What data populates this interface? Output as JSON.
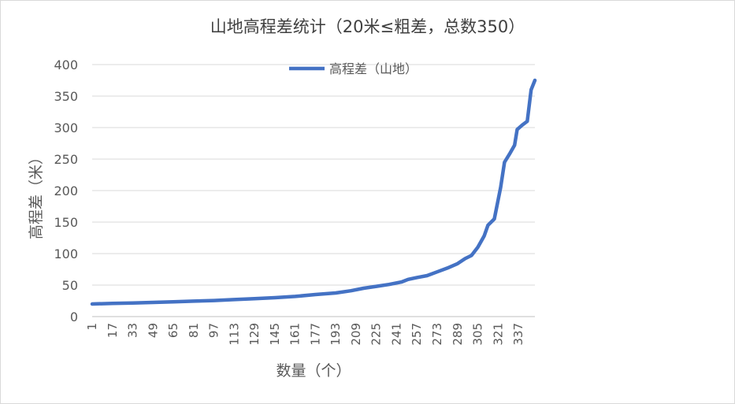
{
  "chart_data": {
    "type": "line",
    "title": "山地高程差统计（20米≤粗差，总数350）",
    "xlabel": "数量（个）",
    "ylabel": "高程差（米）",
    "ylim": [
      0,
      400
    ],
    "y_ticks": [
      "0",
      "50",
      "100",
      "150",
      "200",
      "250",
      "300",
      "350",
      "400"
    ],
    "x_range": [
      1,
      350
    ],
    "x_ticks": [
      "1",
      "17",
      "33",
      "49",
      "65",
      "81",
      "97",
      "113",
      "129",
      "145",
      "161",
      "177",
      "193",
      "209",
      "225",
      "241",
      "257",
      "273",
      "289",
      "305",
      "321",
      "337"
    ],
    "grid": "horizontal",
    "legend_position": "top-center",
    "series_color": "#4472C4",
    "series": [
      {
        "name": "高程差（山地）",
        "points": [
          [
            1,
            20
          ],
          [
            17,
            21
          ],
          [
            33,
            21.5
          ],
          [
            49,
            22.5
          ],
          [
            65,
            23.5
          ],
          [
            81,
            24.5
          ],
          [
            97,
            25.5
          ],
          [
            113,
            27
          ],
          [
            129,
            28.5
          ],
          [
            145,
            30
          ],
          [
            161,
            32
          ],
          [
            177,
            35
          ],
          [
            193,
            37.5
          ],
          [
            205,
            41
          ],
          [
            215,
            45
          ],
          [
            225,
            48
          ],
          [
            235,
            51
          ],
          [
            245,
            55
          ],
          [
            250,
            59
          ],
          [
            257,
            62
          ],
          [
            265,
            65
          ],
          [
            273,
            71
          ],
          [
            281,
            77
          ],
          [
            289,
            84
          ],
          [
            295,
            92
          ],
          [
            300,
            97
          ],
          [
            305,
            110
          ],
          [
            310,
            128
          ],
          [
            313,
            145
          ],
          [
            318,
            155
          ],
          [
            320,
            175
          ],
          [
            323,
            205
          ],
          [
            326,
            245
          ],
          [
            330,
            258
          ],
          [
            334,
            272
          ],
          [
            336,
            297
          ],
          [
            340,
            304
          ],
          [
            344,
            310
          ],
          [
            347,
            360
          ],
          [
            350,
            375
          ]
        ]
      }
    ]
  }
}
